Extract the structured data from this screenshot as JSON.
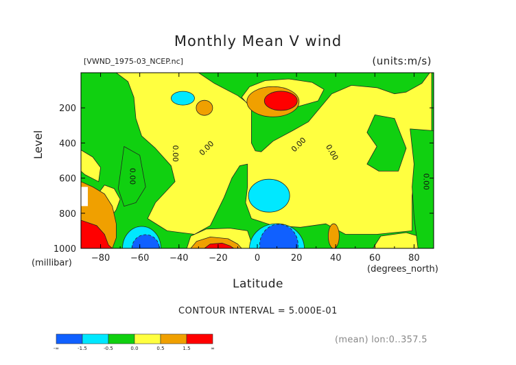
{
  "header": {
    "title": "Monthly Mean V wind",
    "file_label": "[VWND_1975-03_NCEP.nc]",
    "units_label": "(units:m/s)"
  },
  "axes": {
    "y_title": "Level",
    "y_units": "(millibar)",
    "x_title": "Latitude",
    "x_units": "(degrees_north)"
  },
  "footer": {
    "contour_interval": "CONTOUR INTERVAL = 5.000E-01",
    "mean_label": "(mean) lon:0..357.5"
  },
  "colors": {
    "deep_blue": "#1060ff",
    "light_blue": "#00e8ff",
    "green": "#10d010",
    "yellow": "#ffff40",
    "orange": "#f0a000",
    "red": "#ff0000",
    "contour": "#222222"
  },
  "colorbar": {
    "labels": [
      "-∞",
      "-1.5",
      "-0.5",
      "0.0",
      "0.5",
      "1.5",
      "∞"
    ],
    "bins": [
      {
        "color": "#1060ff",
        "range": "< -1.5"
      },
      {
        "color": "#00e8ff",
        "range": "-1.5 to -0.5"
      },
      {
        "color": "#10d010",
        "range": "-0.5 to 0.0"
      },
      {
        "color": "#ffff40",
        "range": "0.0 to 0.5"
      },
      {
        "color": "#f0a000",
        "range": "0.5 to 1.5"
      },
      {
        "color": "#ff0000",
        "range": "> 1.5"
      }
    ]
  },
  "chart_data": {
    "type": "heatmap",
    "title": "Monthly Mean V wind",
    "xlabel": "Latitude",
    "ylabel": "Level",
    "x_units": "degrees_north",
    "y_units": "millibar",
    "value_units": "m/s",
    "xlim": [
      -90,
      90
    ],
    "ylim": [
      1000,
      0
    ],
    "y_inverted": true,
    "x_ticks": [
      -80,
      -60,
      -40,
      -20,
      0,
      20,
      40,
      60,
      80
    ],
    "y_ticks": [
      200,
      400,
      600,
      800,
      1000
    ],
    "contour_interval": 0.5,
    "contour_labels": [
      "0.00",
      "0.00",
      "0.00",
      "0.00",
      "0.00",
      "0.00"
    ],
    "grid": false,
    "features": [
      {
        "sign": "positive",
        "lat_range": [
          0,
          20
        ],
        "level_range": [
          100,
          300
        ],
        "peak_bin": "> 1.5"
      },
      {
        "sign": "positive",
        "lat_range": [
          -90,
          -68
        ],
        "level_range": [
          700,
          1000
        ],
        "peak_bin": "> 1.5"
      },
      {
        "sign": "positive",
        "lat_range": [
          -30,
          -5
        ],
        "level_range": [
          900,
          1000
        ],
        "peak_bin": "> 1.5"
      },
      {
        "sign": "negative",
        "lat_range": [
          -64,
          -40
        ],
        "level_range": [
          900,
          1000
        ],
        "peak_bin": "< -1.5"
      },
      {
        "sign": "negative",
        "lat_range": [
          0,
          22
        ],
        "level_range": [
          880,
          1000
        ],
        "peak_bin": "< -1.5"
      },
      {
        "sign": "negative",
        "lat_range": [
          -1,
          12
        ],
        "level_range": [
          600,
          800
        ],
        "peak_bin": "-1.5 to -0.5"
      }
    ]
  }
}
